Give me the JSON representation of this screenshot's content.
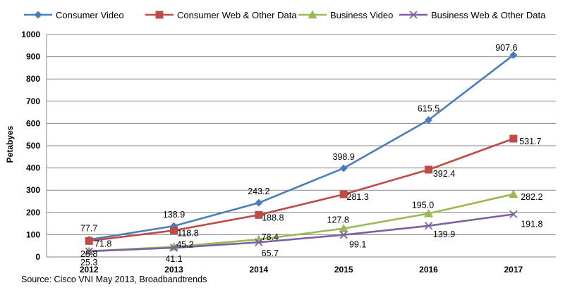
{
  "chart_data": {
    "type": "line",
    "categories": [
      "2012",
      "2013",
      "2014",
      "2015",
      "2016",
      "2017"
    ],
    "series": [
      {
        "name": "Consumer Video",
        "color": "#4A7EBB",
        "marker": "diamond",
        "values": [
          77.7,
          138.9,
          243.2,
          398.9,
          615.5,
          907.6
        ]
      },
      {
        "name": "Consumer Web & Other Data",
        "color": "#BE4B48",
        "marker": "square",
        "values": [
          71.8,
          118.8,
          188.8,
          281.3,
          392.4,
          531.7
        ]
      },
      {
        "name": "Business Video",
        "color": "#98B954",
        "marker": "triangle",
        "values": [
          25.8,
          45.2,
          78.4,
          127.8,
          195.0,
          282.2
        ]
      },
      {
        "name": "Business Web & Other Data",
        "color": "#7D60A0",
        "marker": "x",
        "values": [
          25.3,
          41.1,
          65.7,
          99.1,
          139.9,
          191.8
        ]
      }
    ],
    "data_labels": [
      [
        "77.7",
        "138.9",
        "243.2",
        "398.9",
        "615.5",
        "907.6"
      ],
      [
        "71.8",
        "118.8",
        "188.8",
        "281.3",
        "392.4",
        "531.7"
      ],
      [
        "25.8",
        "45.2",
        "78.4",
        "127.8",
        "195.0",
        "282.2"
      ],
      [
        "25.3",
        "41.1",
        "65.7",
        "99.1",
        "139.9",
        "191.8"
      ]
    ],
    "ylabel": "Petabyes",
    "xlabel": "",
    "ylim": [
      0,
      1000
    ],
    "yticks": [
      "0",
      "100",
      "200",
      "300",
      "400",
      "500",
      "600",
      "700",
      "800",
      "900",
      "1000"
    ],
    "grid": true,
    "legend_position": "top"
  },
  "source_note": "Source:  Cisco VNI May 2013, Broadbandtrends"
}
